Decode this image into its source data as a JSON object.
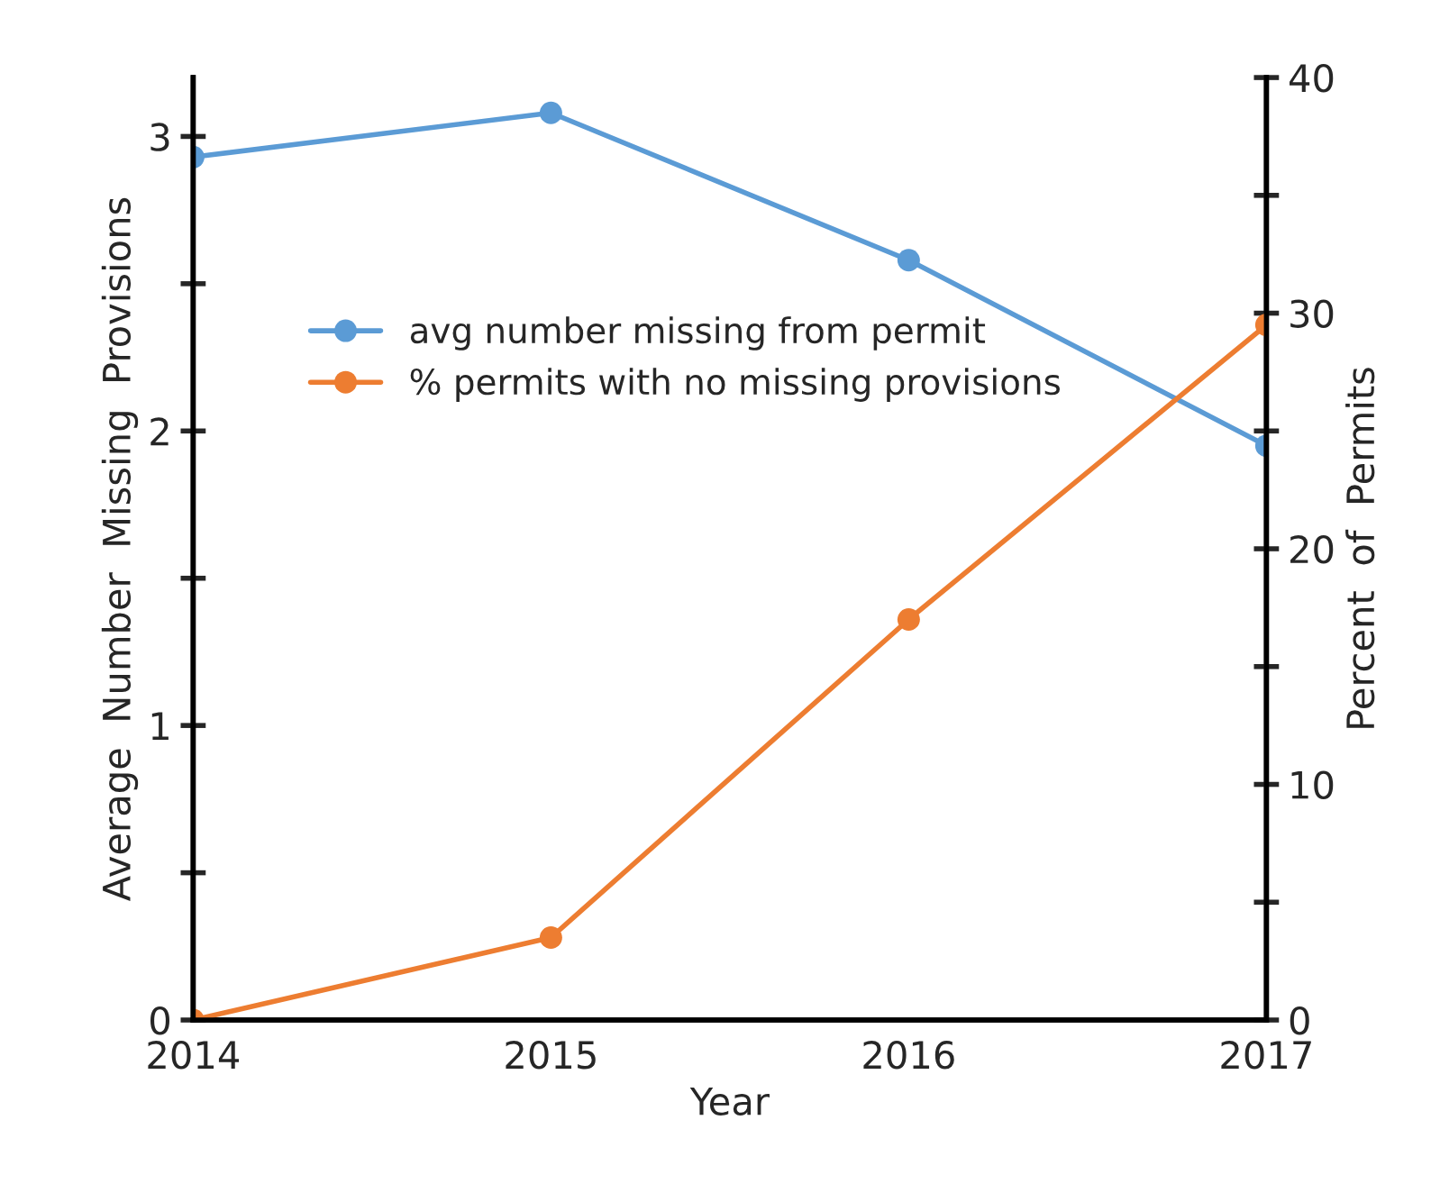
{
  "chart_data": {
    "type": "line",
    "xlabel": "Year",
    "ylabel": "Average  Number  Missing  Provisions",
    "y2label": "Percent  of  Permits",
    "x": [
      2014,
      2015,
      2016,
      2017
    ],
    "series": [
      {
        "name": "avg number missing from permit",
        "color": "#5b9bd5",
        "values": [
          2.93,
          3.08,
          2.58,
          1.95
        ]
      },
      {
        "name": "% permits with no missing provisions",
        "color": "#ed7d31",
        "values": [
          0,
          3.5,
          17.0,
          29.5
        ],
        "axis": "y2"
      }
    ],
    "xlim": [
      2014,
      2017
    ],
    "xticks": [
      2014,
      2015,
      2016,
      2017
    ],
    "ylim": [
      0,
      3.2
    ],
    "yticks": [
      0,
      {
        "value": 0.5,
        "label": null
      },
      1,
      {
        "value": 1.5,
        "label": null
      },
      2,
      {
        "value": 2.5,
        "label": null
      },
      3
    ],
    "y2lim": [
      0,
      40
    ],
    "y2ticks": [
      0,
      {
        "value": 5,
        "label": null
      },
      10,
      {
        "value": 15,
        "label": null
      },
      20,
      {
        "value": 25,
        "label": null
      },
      30,
      {
        "value": 35,
        "label": null
      },
      40
    ],
    "grid": false,
    "legend": "top left",
    "marker": "circle",
    "line_style": "solid"
  }
}
